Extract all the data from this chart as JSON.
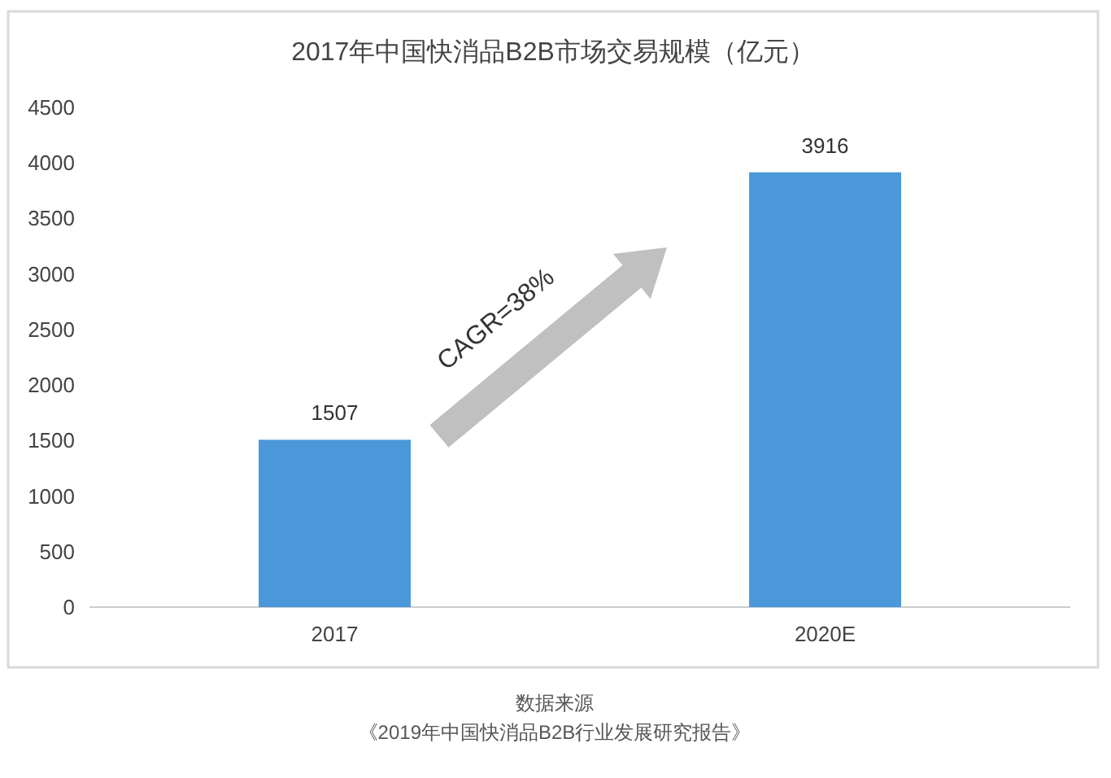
{
  "chart_data": {
    "type": "bar",
    "title": "2017年中国快消品B2B市场交易规模（亿元）",
    "categories": [
      "2017",
      "2020E"
    ],
    "values": [
      1507,
      3916
    ],
    "color": "#4a97d9",
    "ylim": [
      0,
      4500
    ],
    "yticks": [
      0,
      500,
      1000,
      1500,
      2000,
      2500,
      3000,
      3500,
      4000,
      4500
    ],
    "data_labels": true,
    "grid": false,
    "annotations": [
      "CAGR=38%",
      "数据来源",
      "《2019年中国快消品B2B行业发展研究报告》"
    ]
  }
}
